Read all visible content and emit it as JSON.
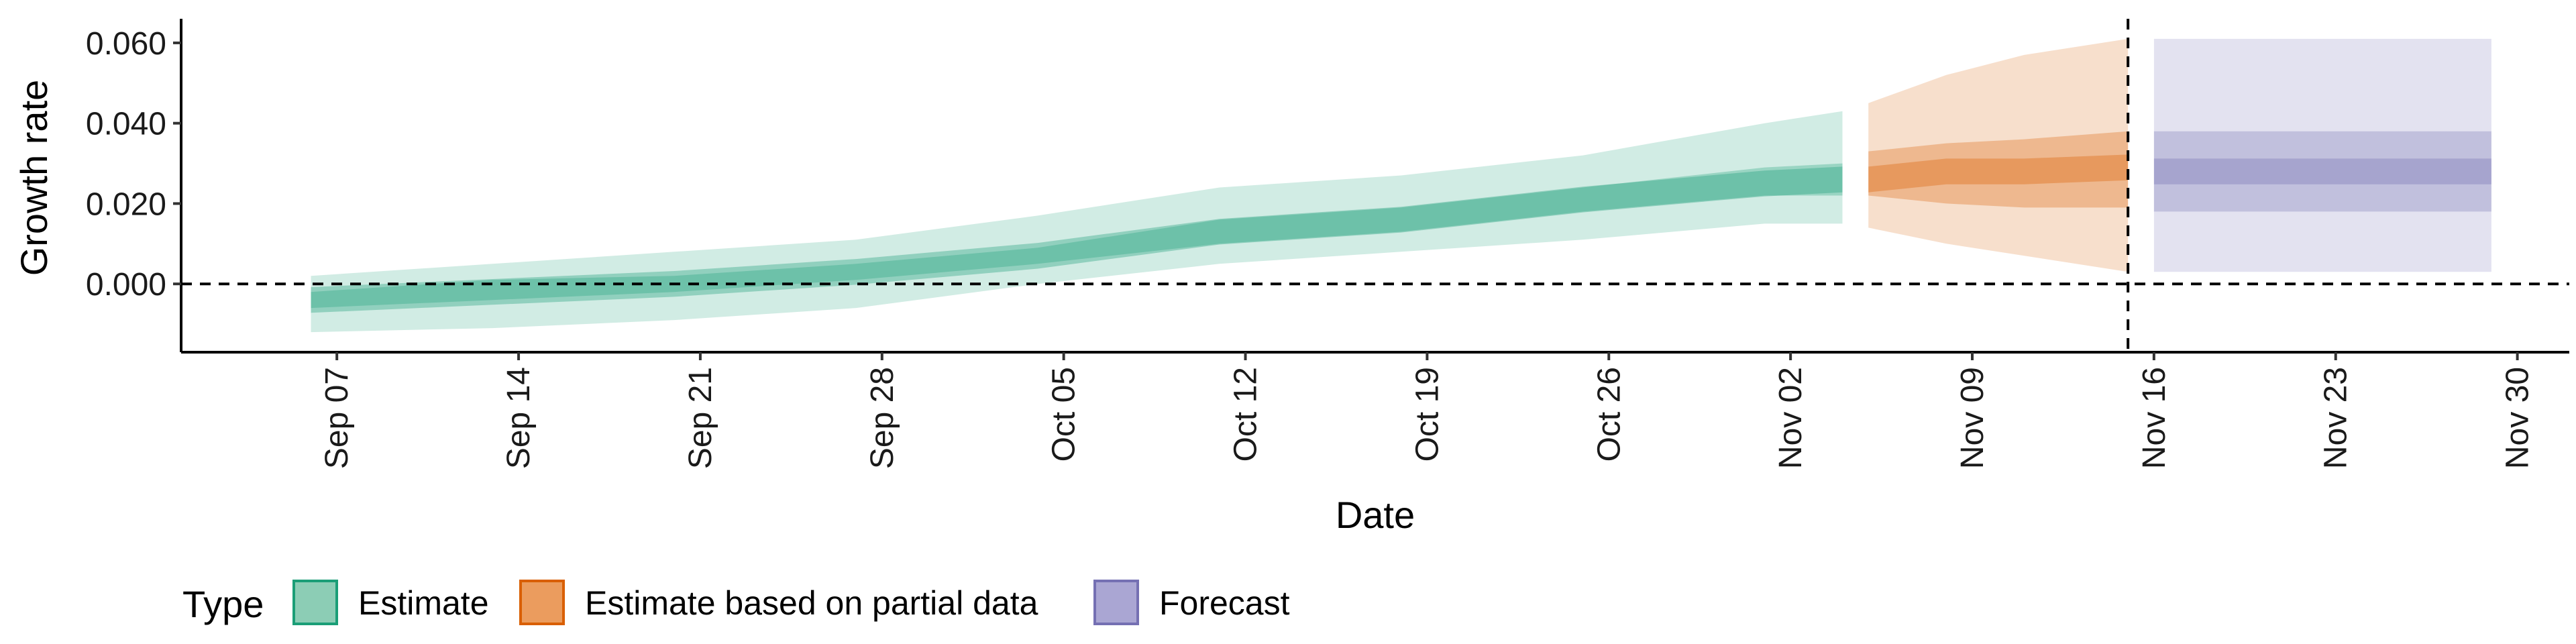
{
  "chart_data": {
    "type": "area",
    "xlabel": "Date",
    "ylabel": "Growth rate",
    "xlim": [
      "2020-09-01",
      "2020-12-02"
    ],
    "ylim": [
      -0.017,
      0.066
    ],
    "x_ticks": [
      "2020-09-07",
      "2020-09-14",
      "2020-09-21",
      "2020-09-28",
      "2020-10-05",
      "2020-10-12",
      "2020-10-19",
      "2020-10-26",
      "2020-11-02",
      "2020-11-09",
      "2020-11-16",
      "2020-11-23",
      "2020-11-30"
    ],
    "x_tick_labels": [
      "Sep 07",
      "Sep 14",
      "Sep 21",
      "Sep 28",
      "Oct 05",
      "Oct 12",
      "Oct 19",
      "Oct 26",
      "Nov 02",
      "Nov 09",
      "Nov 16",
      "Nov 23",
      "Nov 30"
    ],
    "y_ticks": [
      0.0,
      0.02,
      0.04,
      0.06
    ],
    "y_tick_labels": [
      "0.000",
      "0.020",
      "0.040",
      "0.060"
    ],
    "hline": 0,
    "vline": "2020-11-15",
    "legend": {
      "title": "Type",
      "position": "bottom-left",
      "entries": [
        "Estimate",
        "Estimate based on partial data",
        "Forecast"
      ]
    },
    "colors": {
      "estimate": "#1b9e77",
      "partial": "#d95f02",
      "forecast": "#7570b3"
    },
    "series": [
      {
        "name": "Estimate",
        "x": [
          "2020-09-06",
          "2020-09-13",
          "2020-09-20",
          "2020-09-27",
          "2020-10-04",
          "2020-10-11",
          "2020-10-18",
          "2020-10-25",
          "2020-11-01",
          "2020-11-04"
        ],
        "median": [
          -0.004,
          -0.002,
          0.0,
          0.003,
          0.007,
          0.013,
          0.016,
          0.021,
          0.025,
          0.026
        ],
        "lower_90": [
          -0.012,
          -0.011,
          -0.009,
          -0.006,
          0.0,
          0.005,
          0.008,
          0.011,
          0.015,
          0.015
        ],
        "upper_90": [
          0.002,
          0.005,
          0.008,
          0.011,
          0.017,
          0.024,
          0.027,
          0.032,
          0.04,
          0.043
        ],
        "lower_50": [
          -0.006,
          -0.004,
          -0.002,
          0.001,
          0.005,
          0.01,
          0.013,
          0.018,
          0.022,
          0.022
        ],
        "upper_50": [
          -0.002,
          0.001,
          0.002,
          0.005,
          0.009,
          0.016,
          0.019,
          0.024,
          0.029,
          0.03
        ]
      },
      {
        "name": "Estimate based on partial data",
        "x": [
          "2020-11-05",
          "2020-11-08",
          "2020-11-11",
          "2020-11-15"
        ],
        "median": [
          0.026,
          0.028,
          0.028,
          0.029
        ],
        "lower_90": [
          0.014,
          0.01,
          0.007,
          0.003
        ],
        "upper_90": [
          0.045,
          0.052,
          0.057,
          0.061
        ],
        "lower_50": [
          0.022,
          0.02,
          0.019,
          0.019
        ],
        "upper_50": [
          0.033,
          0.035,
          0.036,
          0.038
        ]
      },
      {
        "name": "Forecast",
        "x": [
          "2020-11-16",
          "2020-11-29"
        ],
        "median": [
          0.028,
          0.028
        ],
        "lower_90": [
          0.003,
          0.003
        ],
        "upper_90": [
          0.061,
          0.061
        ],
        "lower_50": [
          0.018,
          0.018
        ],
        "upper_50": [
          0.038,
          0.038
        ]
      }
    ]
  }
}
